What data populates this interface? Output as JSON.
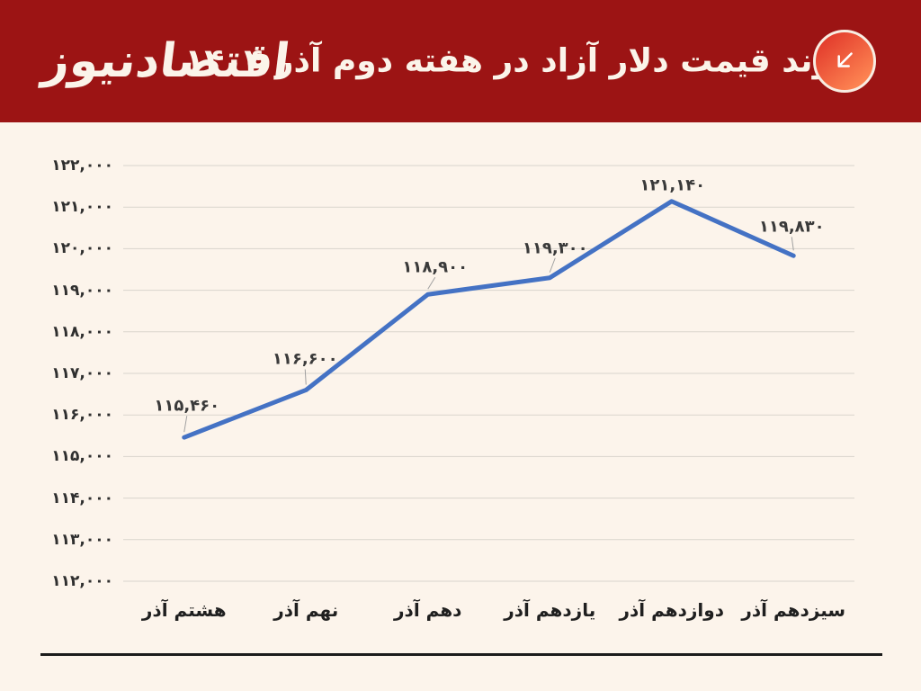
{
  "header": {
    "title": "روند قیمت دلار آزاد در هفته دوم آذر ۱۴۰۴",
    "logo_text": "اقتصادنیوز",
    "badge_icon": "arrow-down-left-icon"
  },
  "colors": {
    "page_bg": "#FCF4EB",
    "header_bg": "#9C1414",
    "header_text": "#FBF4EA",
    "badge_gradient_start": "#E2392B",
    "badge_gradient_end": "#FF8A55",
    "badge_border": "#F8EDE2",
    "badge_arrow": "#FFFFFF",
    "line": "#4472C4",
    "grid": "#D9D5CD",
    "tick_text": "#2F2F2F",
    "xlabel_text": "#1F1F1F",
    "point_label_text": "#3A3A3A",
    "leader": "#A0A0A0",
    "divider": "#1B1B1B"
  },
  "chart_data": {
    "type": "line",
    "title": "روند قیمت دلار آزاد در هفته دوم آذر ۱۴۰۴",
    "categories": [
      "هشتم آذر",
      "نهم آذر",
      "دهم آذر",
      "یازدهم آذر",
      "دوازدهم آذر",
      "سیزدهم آذر"
    ],
    "values": [
      115460,
      116600,
      118900,
      119300,
      121140,
      119830
    ],
    "point_labels": [
      "۱۱۵,۴۶۰",
      "۱۱۶,۶۰۰",
      "۱۱۸,۹۰۰",
      "۱۱۹,۳۰۰",
      "۱۲۱,۱۴۰",
      "۱۱۹,۸۳۰"
    ],
    "ylim": [
      112000,
      122000
    ],
    "y_ticks": [
      112000,
      113000,
      114000,
      115000,
      116000,
      117000,
      118000,
      119000,
      120000,
      121000,
      122000
    ],
    "y_tick_labels": [
      "۱۱۲,۰۰۰",
      "۱۱۳,۰۰۰",
      "۱۱۴,۰۰۰",
      "۱۱۵,۰۰۰",
      "۱۱۶,۰۰۰",
      "۱۱۷,۰۰۰",
      "۱۱۸,۰۰۰",
      "۱۱۹,۰۰۰",
      "۱۲۰,۰۰۰",
      "۱۲۱,۰۰۰",
      "۱۲۲,۰۰۰"
    ],
    "grid": true,
    "legend": false,
    "markers": "none"
  }
}
